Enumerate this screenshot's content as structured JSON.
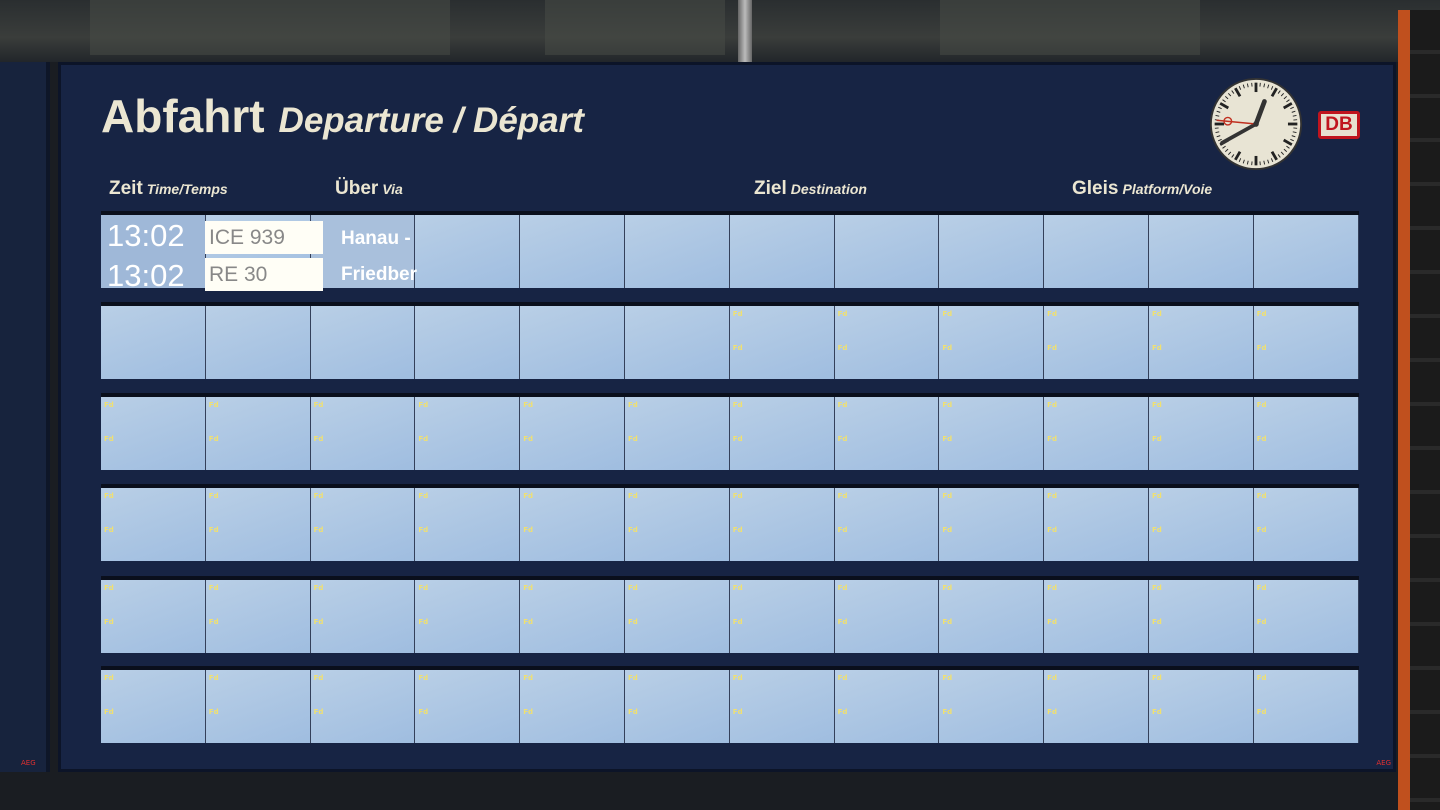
{
  "board": {
    "title_de": "Abfahrt",
    "title_en_fr": "Departure / Départ",
    "brand": "DB",
    "manufacturer": "AEG",
    "columns": [
      {
        "label": "Zeit",
        "sub": "Time/Temps"
      },
      {
        "label": "Über",
        "sub": "Via"
      },
      {
        "label": "Ziel",
        "sub": "Destination"
      },
      {
        "label": "Gleis",
        "sub": "Platform/Voie"
      }
    ],
    "departures": [
      {
        "time": "13:02",
        "train": "ICE 939",
        "via": "Hanau -"
      },
      {
        "time": "13:02",
        "train": "RE 30",
        "via": "Friedber"
      }
    ],
    "blank_flap_mark": "Fd",
    "colors": {
      "panel": "#172444",
      "flap": "#b0c8e4",
      "brand_red": "#c0141e"
    }
  }
}
